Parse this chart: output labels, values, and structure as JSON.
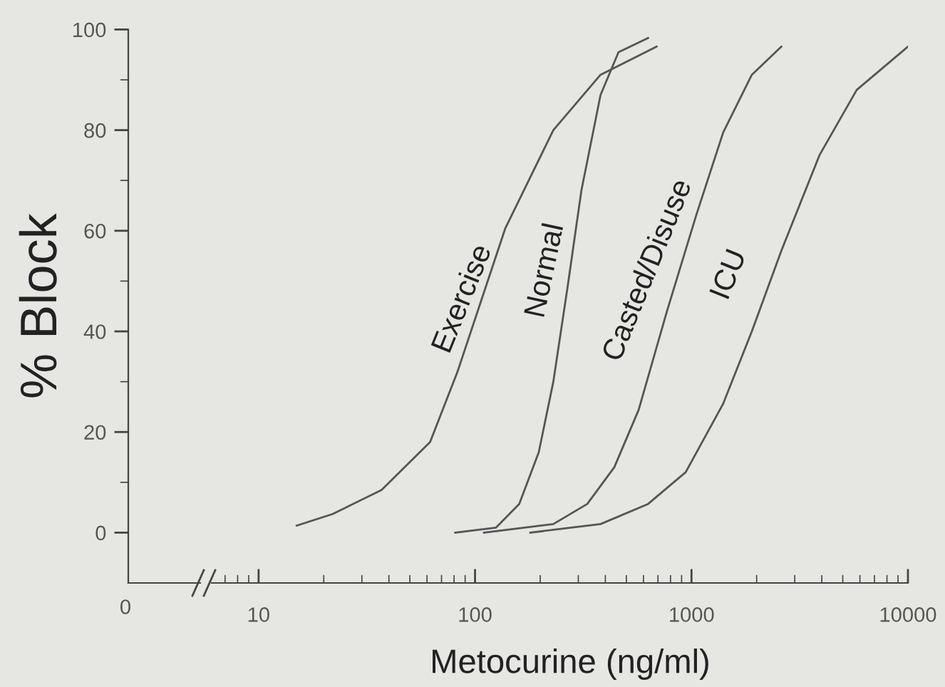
{
  "chart_data": {
    "type": "line",
    "xlabel": "Metocurine (ng/ml)",
    "ylabel": "% Block",
    "log": "x",
    "xlim": [
      2.5,
      10000
    ],
    "xticks": [
      10,
      100,
      1000,
      10000
    ],
    "ylim": [
      -10,
      100
    ],
    "yticks": [
      0,
      20,
      40,
      60,
      80,
      100
    ],
    "grid": false,
    "marker": "none",
    "line_style": "solid",
    "series": [
      {
        "color": "#555555",
        "x": [
          15,
          22,
          37,
          62,
          83,
          138,
          230,
          380,
          690
        ],
        "values": [
          1.4,
          3.7,
          8.5,
          18,
          32,
          60.5,
          80,
          91,
          96.6
        ]
      },
      {
        "color": "#555555",
        "x": [
          81,
          125,
          160,
          197,
          230,
          268,
          310,
          380,
          460,
          630
        ],
        "values": [
          0,
          1,
          5.7,
          16,
          30,
          49,
          68,
          87,
          95.5,
          98.3
        ]
      },
      {
        "color": "#555555",
        "x": [
          110,
          230,
          330,
          440,
          570,
          770,
          1050,
          1400,
          1900,
          2600
        ],
        "values": [
          0,
          1.7,
          5.7,
          13,
          24.4,
          44,
          63,
          79.5,
          91,
          96.6
        ]
      },
      {
        "color": "#555555",
        "x": [
          180,
          380,
          630,
          940,
          1400,
          1900,
          2600,
          3900,
          5800,
          10000
        ],
        "values": [
          0,
          1.7,
          5.7,
          12,
          25.6,
          40,
          56,
          75,
          88,
          96.6
        ]
      }
    ],
    "annotations": [
      "Exercise",
      "Normal",
      "Casted/Disuse",
      "ICU",
      "0"
    ]
  }
}
